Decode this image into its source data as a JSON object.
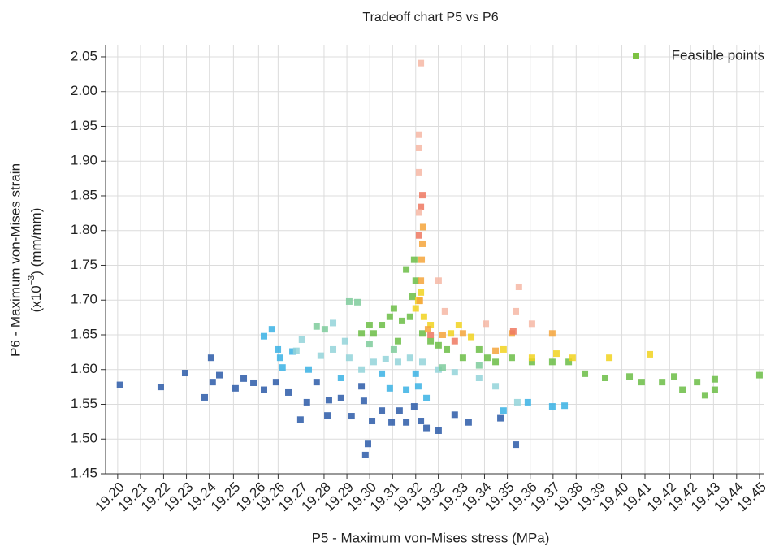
{
  "chart_data": {
    "type": "scatter",
    "title": "Tradeoff chart P5 vs P6",
    "xlabel": "P5 - Maximum von-Mises stress (MPa)",
    "ylabel": {
      "line1": "P6 - Maximum von-Mises strain",
      "line2_pre": "(x10",
      "line2_sup": "−3",
      "line2_post": ") (mm/mm)"
    },
    "xlim": [
      19.1953,
      19.4516
    ],
    "ylim": [
      1.45,
      2.0675
    ],
    "xticks": [
      {
        "value": 19.2,
        "label": "19.20"
      },
      {
        "value": 19.2089,
        "label": "19.21"
      },
      {
        "value": 19.2179,
        "label": "19.22"
      },
      {
        "value": 19.2268,
        "label": "19.23"
      },
      {
        "value": 19.2357,
        "label": "19.24"
      },
      {
        "value": 19.2451,
        "label": "19.25"
      },
      {
        "value": 19.2549,
        "label": "19.26"
      },
      {
        "value": 19.2625,
        "label": "19.26"
      },
      {
        "value": 19.2714,
        "label": "19.27"
      },
      {
        "value": 19.2804,
        "label": "19.28"
      },
      {
        "value": 19.2893,
        "label": "19.29"
      },
      {
        "value": 19.2982,
        "label": "19.30"
      },
      {
        "value": 19.3071,
        "label": "19.31"
      },
      {
        "value": 19.3161,
        "label": "19.32"
      },
      {
        "value": 19.3249,
        "label": "19.32"
      },
      {
        "value": 19.3339,
        "label": "19.33"
      },
      {
        "value": 19.3429,
        "label": "19.34"
      },
      {
        "value": 19.3518,
        "label": "19.35"
      },
      {
        "value": 19.3607,
        "label": "19.36"
      },
      {
        "value": 19.3696,
        "label": "19.37"
      },
      {
        "value": 19.3786,
        "label": "19.38"
      },
      {
        "value": 19.3875,
        "label": "19.39"
      },
      {
        "value": 19.3964,
        "label": "19.40"
      },
      {
        "value": 19.4054,
        "label": "19.41"
      },
      {
        "value": 19.415,
        "label": "19.42"
      },
      {
        "value": 19.4232,
        "label": "19.42"
      },
      {
        "value": 19.4321,
        "label": "19.43"
      },
      {
        "value": 19.4411,
        "label": "19.44"
      },
      {
        "value": 19.45,
        "label": "19.45"
      }
    ],
    "yticks": [
      1.45,
      {
        "value": 1.5,
        "label": "1.50"
      },
      1.55,
      {
        "value": 1.6,
        "label": "1.60"
      },
      1.65,
      {
        "value": 1.7,
        "label": "1.70"
      },
      1.75,
      {
        "value": 1.8,
        "label": "1.80"
      },
      1.85,
      {
        "value": 1.9,
        "label": "1.90"
      },
      1.95,
      {
        "value": 2.0,
        "label": "2.00"
      },
      2.05
    ],
    "grid": true,
    "legend": "upper right",
    "series": [
      {
        "name": "Feasible points",
        "color": "#7cc242",
        "x": [
          19.2009,
          19.2168,
          19.2263,
          19.2339,
          19.2364,
          19.237,
          19.2396,
          19.2459,
          19.2491,
          19.2529,
          19.257,
          19.2617,
          19.2665,
          19.2712,
          19.2737,
          19.2775,
          19.2817,
          19.2823,
          19.287,
          19.2911,
          19.295,
          19.2959,
          19.2975,
          19.2965,
          19.2991,
          19.3029,
          19.3067,
          19.3098,
          19.3124,
          19.3155,
          19.3181,
          19.3203,
          19.325,
          19.3313,
          19.3367,
          19.3491,
          19.3551,
          19.257,
          19.2601,
          19.2633,
          19.2624,
          19.2642,
          19.2681,
          19.2744,
          19.287,
          19.3029,
          19.306,
          19.3124,
          19.3171,
          19.3203,
          19.3161,
          19.3503,
          19.3598,
          19.3693,
          19.3741,
          19.2718,
          19.2696,
          19.2791,
          19.2839,
          19.2902,
          19.295,
          19.2997,
          19.3044,
          19.3092,
          19.3139,
          19.3187,
          19.325,
          19.3313,
          19.3408,
          19.3472,
          19.3557,
          19.2886,
          19.2839,
          19.2775,
          19.2902,
          19.2934,
          19.2807,
          19.2981,
          19.3076,
          19.3266,
          19.3408,
          19.2997,
          19.3029,
          19.306,
          19.3076,
          19.3092,
          19.3124,
          19.3139,
          19.3149,
          19.3155,
          19.3161,
          19.3187,
          19.3219,
          19.3282,
          19.3345,
          19.3408,
          19.344,
          19.3535,
          19.3614,
          19.3693,
          19.3757,
          19.382,
          19.3899,
          19.3994,
          19.4041,
          19.4121,
          19.4168,
          19.42,
          19.4257,
          19.4326,
          19.4288,
          19.4326,
          19.45,
          19.2981,
          19.295,
          19.3108,
          19.325,
          19.3472,
          19.3161,
          19.3171,
          19.3181,
          19.3193,
          19.3219,
          19.3298,
          19.3329,
          19.3377,
          19.3503,
          19.3614,
          19.3709,
          19.3772,
          19.3915,
          19.4073,
          19.3177,
          19.3181,
          19.3184,
          19.3187,
          19.319,
          19.3209,
          19.3266,
          19.3345,
          19.3472,
          19.3535,
          19.3693,
          19.3174,
          19.3181,
          19.3187,
          19.3219,
          19.3313,
          19.3541,
          19.3174,
          19.3174,
          19.3174,
          19.3174,
          19.3181,
          19.325,
          19.3275,
          19.3434,
          19.3551,
          19.3563,
          19.3614
        ],
        "values": [
          1.578,
          1.575,
          1.595,
          1.56,
          1.617,
          1.582,
          1.592,
          1.573,
          1.587,
          1.581,
          1.571,
          1.582,
          1.567,
          1.528,
          1.553,
          1.582,
          1.534,
          1.556,
          1.559,
          1.533,
          1.576,
          1.555,
          1.493,
          1.477,
          1.526,
          1.541,
          1.524,
          1.541,
          1.524,
          1.547,
          1.526,
          1.516,
          1.512,
          1.535,
          1.524,
          1.53,
          1.492,
          1.648,
          1.658,
          1.617,
          1.629,
          1.603,
          1.626,
          1.6,
          1.588,
          1.594,
          1.573,
          1.571,
          1.576,
          1.559,
          1.594,
          1.541,
          1.553,
          1.547,
          1.548,
          1.643,
          1.627,
          1.62,
          1.629,
          1.617,
          1.6,
          1.611,
          1.615,
          1.611,
          1.617,
          1.611,
          1.6,
          1.596,
          1.588,
          1.576,
          1.553,
          1.641,
          1.667,
          1.662,
          1.698,
          1.697,
          1.658,
          1.637,
          1.629,
          1.603,
          1.606,
          1.652,
          1.664,
          1.676,
          1.688,
          1.641,
          1.744,
          1.676,
          1.705,
          1.758,
          1.728,
          1.652,
          1.641,
          1.629,
          1.617,
          1.629,
          1.617,
          1.617,
          1.611,
          1.611,
          1.611,
          1.594,
          1.588,
          1.59,
          1.582,
          1.582,
          1.59,
          1.571,
          1.582,
          1.571,
          1.563,
          1.586,
          1.592,
          1.664,
          1.652,
          1.67,
          1.635,
          1.611,
          1.688,
          1.699,
          1.711,
          1.676,
          1.664,
          1.652,
          1.664,
          1.647,
          1.629,
          1.617,
          1.623,
          1.617,
          1.617,
          1.622,
          1.699,
          1.728,
          1.758,
          1.781,
          1.805,
          1.658,
          1.65,
          1.652,
          1.627,
          1.652,
          1.652,
          1.793,
          1.834,
          1.851,
          1.65,
          1.641,
          1.655,
          1.938,
          1.919,
          1.884,
          1.826,
          2.041,
          1.728,
          1.684,
          1.666,
          1.684,
          1.719,
          1.666
        ],
        "colors": [
          "#2b5ba8",
          "#2b5ba8",
          "#2b5ba8",
          "#2b5ba8",
          "#2b5ba8",
          "#2b5ba8",
          "#2b5ba8",
          "#2b5ba8",
          "#2b5ba8",
          "#2b5ba8",
          "#2b5ba8",
          "#2b5ba8",
          "#2b5ba8",
          "#2b5ba8",
          "#2b5ba8",
          "#2b5ba8",
          "#2b5ba8",
          "#2b5ba8",
          "#2b5ba8",
          "#2b5ba8",
          "#2b5ba8",
          "#2b5ba8",
          "#2b5ba8",
          "#2b5ba8",
          "#2b5ba8",
          "#2b5ba8",
          "#2b5ba8",
          "#2b5ba8",
          "#2b5ba8",
          "#2b5ba8",
          "#2b5ba8",
          "#2b5ba8",
          "#2b5ba8",
          "#2b5ba8",
          "#2b5ba8",
          "#2b5ba8",
          "#2b5ba8",
          "#3ab2e4",
          "#3ab2e4",
          "#3ab2e4",
          "#3ab2e4",
          "#3ab2e4",
          "#3ab2e4",
          "#3ab2e4",
          "#3ab2e4",
          "#3ab2e4",
          "#3ab2e4",
          "#3ab2e4",
          "#3ab2e4",
          "#3ab2e4",
          "#3ab2e4",
          "#3ab2e4",
          "#3ab2e4",
          "#3ab2e4",
          "#3ab2e4",
          "#93d3d9",
          "#93d3d9",
          "#93d3d9",
          "#93d3d9",
          "#93d3d9",
          "#93d3d9",
          "#93d3d9",
          "#93d3d9",
          "#93d3d9",
          "#93d3d9",
          "#93d3d9",
          "#93d3d9",
          "#93d3d9",
          "#93d3d9",
          "#93d3d9",
          "#93d3d9",
          "#93d3d9",
          "#93d3d9",
          "#7ecb9b",
          "#7ecb9b",
          "#7ecb9b",
          "#7ecb9b",
          "#7ecb9b",
          "#7ecb9b",
          "#7ecb9b",
          "#7ecb9b",
          "#6bbd45",
          "#6bbd45",
          "#6bbd45",
          "#6bbd45",
          "#6bbd45",
          "#6bbd45",
          "#6bbd45",
          "#6bbd45",
          "#6bbd45",
          "#6bbd45",
          "#6bbd45",
          "#6bbd45",
          "#6bbd45",
          "#6bbd45",
          "#6bbd45",
          "#6bbd45",
          "#6bbd45",
          "#6bbd45",
          "#6bbd45",
          "#6bbd45",
          "#6bbd45",
          "#6bbd45",
          "#6bbd45",
          "#6bbd45",
          "#6bbd45",
          "#6bbd45",
          "#6bbd45",
          "#6bbd45",
          "#6bbd45",
          "#6bbd45",
          "#6bbd45",
          "#6bbd45",
          "#6bbd45",
          "#6bbd45",
          "#6bbd45",
          "#6bbd45",
          "#6bbd45",
          "#f1d21f",
          "#f1d21f",
          "#f1d21f",
          "#f1d21f",
          "#f1d21f",
          "#f1d21f",
          "#f1d21f",
          "#f1d21f",
          "#f1d21f",
          "#f1d21f",
          "#f1d21f",
          "#f1d21f",
          "#f1d21f",
          "#f1d21f",
          "#f4a53b",
          "#f4a53b",
          "#f4a53b",
          "#f4a53b",
          "#f4a53b",
          "#f4a53b",
          "#f4a53b",
          "#f4a53b",
          "#f4a53b",
          "#f4a53b",
          "#f4a53b",
          "#ef7860",
          "#ef7860",
          "#ef7860",
          "#ef7860",
          "#ef7860",
          "#ef7860",
          "#f6b7a4",
          "#f6b7a4",
          "#f6b7a4",
          "#f6b7a4",
          "#f6b7a4",
          "#f6b7a4",
          "#f6b7a4",
          "#f6b7a4",
          "#f6b7a4",
          "#f6b7a4",
          "#f6b7a4"
        ]
      }
    ]
  }
}
